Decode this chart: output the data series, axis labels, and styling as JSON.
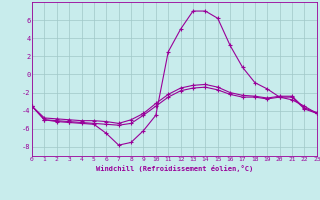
{
  "xlabel": "Windchill (Refroidissement éolien,°C)",
  "bg_color": "#c8ecec",
  "grid_color": "#a0c8c8",
  "line_color": "#990099",
  "hours": [
    0,
    1,
    2,
    3,
    4,
    5,
    6,
    7,
    8,
    9,
    10,
    11,
    12,
    13,
    14,
    15,
    16,
    17,
    18,
    19,
    20,
    21,
    22,
    23
  ],
  "series1": [
    -3.5,
    -5.0,
    -5.2,
    -5.3,
    -5.4,
    -5.5,
    -6.5,
    -7.8,
    -7.5,
    -6.2,
    -4.5,
    2.5,
    5.0,
    7.0,
    7.0,
    6.2,
    3.2,
    0.8,
    -0.9,
    -1.6,
    -2.5,
    -2.8,
    -3.5,
    -4.3
  ],
  "series2": [
    -3.5,
    -5.0,
    -5.1,
    -5.2,
    -5.3,
    -5.4,
    -5.5,
    -5.6,
    -5.4,
    -4.5,
    -3.5,
    -2.5,
    -1.8,
    -1.5,
    -1.4,
    -1.7,
    -2.2,
    -2.5,
    -2.5,
    -2.7,
    -2.5,
    -2.5,
    -3.8,
    -4.3
  ],
  "series3": [
    -3.5,
    -4.8,
    -4.9,
    -5.0,
    -5.1,
    -5.1,
    -5.2,
    -5.4,
    -5.0,
    -4.3,
    -3.2,
    -2.2,
    -1.5,
    -1.2,
    -1.1,
    -1.4,
    -2.0,
    -2.3,
    -2.4,
    -2.6,
    -2.4,
    -2.4,
    -3.7,
    -4.2
  ],
  "ylim": [
    -9,
    8
  ],
  "yticks": [
    -8,
    -6,
    -4,
    -2,
    0,
    2,
    4,
    6
  ],
  "xlim": [
    0,
    23
  ],
  "xticks": [
    0,
    1,
    2,
    3,
    4,
    5,
    6,
    7,
    8,
    9,
    10,
    11,
    12,
    13,
    14,
    15,
    16,
    17,
    18,
    19,
    20,
    21,
    22,
    23
  ]
}
